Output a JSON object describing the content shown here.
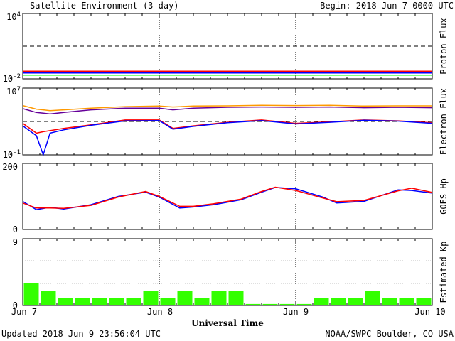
{
  "header": {
    "title": "Satellite Environment (3 day)",
    "begin": "Begin:  2018 Jun 7 0000 UTC"
  },
  "footer": {
    "updated": "Updated 2018 Jun  9 23:56:04 UTC",
    "credit": "NOAA/SWPC Boulder, CO USA"
  },
  "chart_data": [
    {
      "type": "line",
      "ylabel": "Proton Flux",
      "yscale": "log",
      "ylim": [
        0.01,
        10000
      ],
      "yticks": [
        {
          "base": "10",
          "exp": "4"
        },
        {
          "base": "10",
          "exp": "-2"
        }
      ],
      "threshold": 10,
      "x_days": [
        0,
        0.25,
        0.5,
        0.75,
        1,
        1.25,
        1.5,
        1.75,
        2,
        2.25,
        2.5,
        2.75,
        3
      ],
      "series": [
        {
          "color": "#ff0000",
          "values": [
            0.05,
            0.05,
            0.05,
            0.05,
            0.05,
            0.05,
            0.05,
            0.05,
            0.05,
            0.05,
            0.05,
            0.05,
            0.05
          ]
        },
        {
          "color": "#0000ff",
          "values": [
            0.035,
            0.035,
            0.035,
            0.035,
            0.035,
            0.035,
            0.035,
            0.035,
            0.035,
            0.035,
            0.035,
            0.035,
            0.035
          ]
        },
        {
          "color": "#00ff00",
          "values": [
            0.022,
            0.022,
            0.022,
            0.022,
            0.022,
            0.022,
            0.022,
            0.022,
            0.022,
            0.022,
            0.022,
            0.022,
            0.022
          ]
        }
      ]
    },
    {
      "type": "line",
      "ylabel": "Electron Flux",
      "yscale": "log",
      "ylim": [
        0.1,
        10000000
      ],
      "yticks": [
        {
          "base": "10",
          "exp": "7"
        },
        {
          "base": "10",
          "exp": "-1"
        }
      ],
      "threshold": 1000,
      "x_days": [
        0,
        0.1,
        0.15,
        0.2,
        0.3,
        0.5,
        0.75,
        1,
        1.1,
        1.25,
        1.5,
        1.75,
        2,
        2.25,
        2.5,
        2.75,
        3
      ],
      "series": [
        {
          "color": "#ff9900",
          "values": [
            80000,
            30000,
            25000,
            20000,
            25000,
            40000,
            60000,
            70000,
            55000,
            70000,
            75000,
            85000,
            80000,
            85000,
            70000,
            75000,
            75000
          ]
        },
        {
          "color": "#660099",
          "values": [
            35000,
            12000,
            10000,
            8000,
            12000,
            25000,
            40000,
            40000,
            25000,
            40000,
            50000,
            55000,
            50000,
            55000,
            45000,
            50000,
            45000
          ]
        },
        {
          "color": "#ff0000",
          "values": [
            600,
            40,
            60,
            80,
            150,
            400,
            1500,
            1500,
            150,
            300,
            800,
            1500,
            600,
            900,
            1500,
            1200,
            700
          ]
        },
        {
          "color": "#0000ff",
          "values": [
            300,
            20,
            0.1,
            40,
            100,
            350,
            1200,
            1300,
            120,
            260,
            700,
            1300,
            500,
            800,
            1400,
            1100,
            600
          ]
        }
      ]
    },
    {
      "type": "line",
      "ylabel": "GOES Hp",
      "ylim": [
        0,
        200
      ],
      "yticks": [
        "200",
        "0"
      ],
      "x_days": [
        0,
        0.1,
        0.2,
        0.3,
        0.5,
        0.7,
        0.9,
        1.0,
        1.15,
        1.25,
        1.4,
        1.6,
        1.75,
        1.85,
        2.0,
        2.2,
        2.3,
        2.5,
        2.75,
        2.85,
        3.0
      ],
      "series": [
        {
          "color": "#0000ff",
          "values": [
            85,
            60,
            67,
            62,
            75,
            100,
            113,
            98,
            65,
            68,
            75,
            90,
            113,
            127,
            123,
            98,
            80,
            85,
            120,
            118,
            110
          ]
        },
        {
          "color": "#ff0000",
          "values": [
            80,
            65,
            65,
            64,
            73,
            98,
            115,
            100,
            70,
            70,
            78,
            92,
            115,
            128,
            118,
            95,
            84,
            88,
            117,
            125,
            112
          ]
        }
      ]
    },
    {
      "type": "bar",
      "ylabel": "Estimated Kp",
      "ylim": [
        0,
        9
      ],
      "yticks": [
        "9",
        "0"
      ],
      "color": "#33ff00",
      "values": [
        3,
        2,
        1,
        1,
        1,
        1,
        1,
        2,
        1,
        2,
        1,
        2,
        2,
        0.2,
        0.2,
        0.2,
        0.2,
        1,
        1,
        1,
        2,
        1,
        1,
        1
      ]
    }
  ],
  "xaxis": {
    "label": "Universal Time",
    "ticks": [
      "Jun 7",
      "Jun 8",
      "Jun 9",
      "Jun 10"
    ]
  }
}
